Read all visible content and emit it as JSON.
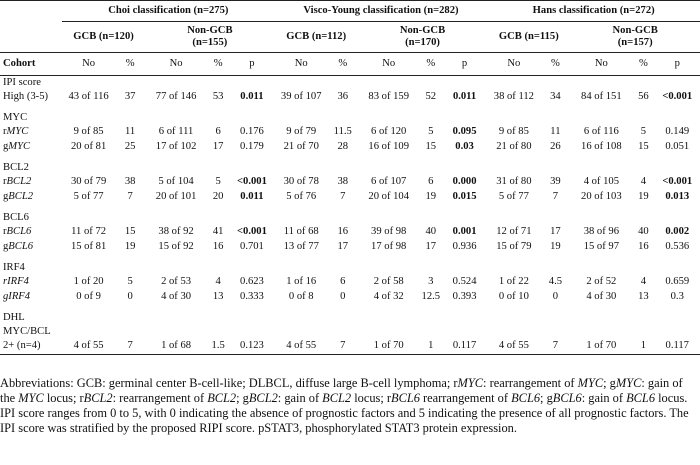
{
  "groups": [
    {
      "title": "Choi classification (n=275)",
      "gcb": "GCB (n=120)",
      "non": "Non-GCB",
      "non_n": "(n=155)"
    },
    {
      "title": "Visco-Young classification (n=282)",
      "gcb": "GCB (n=112)",
      "non": "Non-GCB",
      "non_n": "(n=170)"
    },
    {
      "title": "Hans classification (n=272)",
      "gcb": "GCB (n=115)",
      "non": "Non-GCB",
      "non_n": "(n=157)"
    }
  ],
  "col_labels": {
    "cohort": "Cohort",
    "no": "No",
    "pct": "%",
    "p": "p"
  },
  "sections": {
    "ipi_a": "IPI score",
    "ipi_b": "High (3-5)",
    "myc": "MYC",
    "bcl2": "BCL2",
    "bcl6": "BCL6",
    "irf4": "IRF4",
    "dhl": "DHL",
    "dhl_a": "MYC/BCL",
    "dhl_b": "2+ (n=4)"
  },
  "rows": {
    "ipi": [
      "43 of 116",
      "37",
      "77 of 146",
      "53",
      "0.011",
      "39 of 107",
      "36",
      "83 of 159",
      "52",
      "0.011",
      "38 of 112",
      "34",
      "84 of 151",
      "56",
      "<0.001"
    ],
    "rmyc_label": {
      "pre": "r",
      "gene": "MYC"
    },
    "rmyc": [
      "9 of 85",
      "11",
      "6 of 111",
      "6",
      "0.176",
      "9 of 79",
      "11.5",
      "6 of 120",
      "5",
      "0.095",
      "9 of 85",
      "11",
      "6 of 116",
      "5",
      "0.149"
    ],
    "gmyc_label": {
      "pre": "g",
      "gene": "MYC"
    },
    "gmyc": [
      "20 of 81",
      "25",
      "17 of 102",
      "17",
      "0.179",
      "21 of 70",
      "28",
      "16 of 109",
      "15",
      "0.03",
      "21 of 80",
      "26",
      "16 of 108",
      "15",
      "0.051"
    ],
    "rbcl2_label": {
      "pre": "r",
      "gene": "BCL2"
    },
    "rbcl2": [
      "30 of 79",
      "38",
      "5 of 104",
      "5",
      "<0.001",
      "30 of 78",
      "38",
      "6 of 107",
      "6",
      "0.000",
      "31 of 80",
      "39",
      "4 of 105",
      "4",
      "<0.001"
    ],
    "gbcl2_label": {
      "pre": "g",
      "gene": "BCL2"
    },
    "gbcl2": [
      "5 of 77",
      "7",
      "20 of 101",
      "20",
      "0.011",
      "5 of 76",
      "7",
      "20 of 104",
      "19",
      "0.015",
      "5 of 77",
      "7",
      "20 of 103",
      "19",
      "0.013"
    ],
    "rbcl6_label": {
      "pre": "r",
      "gene": "BCL6"
    },
    "rbcl6": [
      "11 of 72",
      "15",
      "38 of 92",
      "41",
      "<0.001",
      "11 of 68",
      "16",
      "39 of 98",
      "40",
      "0.001",
      "12 of 71",
      "17",
      "38 of 96",
      "40",
      "0.002"
    ],
    "gbcl6_label": {
      "pre": "g",
      "gene": "BCL6"
    },
    "gbcl6": [
      "15 of 81",
      "19",
      "15 of 92",
      "16",
      "0.701",
      "13 of 77",
      "17",
      "17 of 98",
      "17",
      "0.936",
      "15 of 79",
      "19",
      "15 of 97",
      "16",
      "0.536"
    ],
    "rirf4_label": {
      "pre": "r",
      "gene": "IRF4"
    },
    "rirf4": [
      "1 of 20",
      "5",
      "2 of 53",
      "4",
      "0.623",
      "1 of 16",
      "6",
      "2 of 58",
      "3",
      "0.524",
      "1 of 22",
      "4.5",
      "2 of 52",
      "4",
      "0.659"
    ],
    "girf4_label": {
      "pre": "g",
      "gene": "IRF4"
    },
    "girf4": [
      "0 of 9",
      "0",
      "4 of 30",
      "13",
      "0.333",
      "0 of 8",
      "0",
      "4 of 32",
      "12.5",
      "0.393",
      "0 of 10",
      "0",
      "4 of 30",
      "13",
      "0.3"
    ],
    "dhl": [
      "4 of 55",
      "7",
      "1 of 68",
      "1.5",
      "0.123",
      "4 of 55",
      "7",
      "1 of 70",
      "1",
      "0.117",
      "4 of 55",
      "7",
      "1 of 70",
      "1",
      "0.117"
    ]
  },
  "bold_p": {
    "ipi": [
      true,
      true,
      true
    ],
    "rmyc": [
      false,
      true,
      false
    ],
    "gmyc": [
      false,
      true,
      false
    ],
    "rbcl2": [
      true,
      true,
      true
    ],
    "gbcl2": [
      true,
      true,
      true
    ],
    "rbcl6": [
      true,
      true,
      true
    ],
    "gbcl6": [
      false,
      false,
      false
    ],
    "rirf4": [
      false,
      false,
      false
    ],
    "girf4": [
      false,
      false,
      false
    ],
    "dhl": [
      false,
      false,
      false
    ]
  },
  "footnote": {
    "t1": "Abbreviations: GCB: germinal center B-cell-like; DLBCL, diffuse large B-cell lymphoma; r",
    "t2": "MYC",
    "t3": ": rearrangement of ",
    "t4": "MYC",
    "t5": "; g",
    "t6": "MYC",
    "t7": ": gain of the ",
    "t8": "MYC",
    "t9": " locus; r",
    "t10": "BCL2",
    "t11": ": rearrangement of ",
    "t12": "BCL2",
    "t13": "; g",
    "t14": "BCL2",
    "t15": ": gain of ",
    "t16": "BCL2",
    "t17": " locus; r",
    "t18": "BCL6",
    "t19": " rearrangement of ",
    "t20": "BCL6",
    "t21": "; g",
    "t22": "BCL6",
    "t23": ": gain of ",
    "t24": "BCL6",
    "t25": " locus. IPI score ranges from 0 to 5, with 0 indicating the absence of prognostic factors and 5 indicating the presence of all prognostic factors. The IPI score was stratified by the proposed RIPI score. pSTAT3, phosphorylated STAT3 protein expression."
  }
}
